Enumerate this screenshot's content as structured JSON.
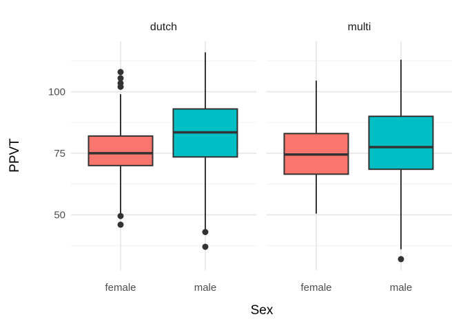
{
  "chart_data": {
    "type": "boxplot",
    "title": "",
    "xlabel": "Sex",
    "ylabel": "PPVT",
    "x_categories": [
      "female",
      "male"
    ],
    "y_ticks": [
      50,
      75,
      100
    ],
    "y_minor_ticks": [
      37.5,
      62.5,
      87.5,
      112.5
    ],
    "ylim": [
      27.5,
      120.5
    ],
    "grid": true,
    "legend": "none",
    "facets": [
      {
        "label": "dutch",
        "boxes": [
          {
            "category": "female",
            "fill": "#F8766D",
            "whisker_low": 50.5,
            "q1": 70,
            "median": 75,
            "q3": 82,
            "whisker_high": 99,
            "outliers": [
              108,
              105.5,
              103.5,
              102,
              49.5,
              46
            ]
          },
          {
            "category": "male",
            "fill": "#00BFC4",
            "whisker_low": 44,
            "q1": 73.5,
            "median": 83.5,
            "q3": 93,
            "whisker_high": 116,
            "outliers": [
              43,
              37
            ]
          }
        ]
      },
      {
        "label": "multi",
        "boxes": [
          {
            "category": "female",
            "fill": "#F8766D",
            "whisker_low": 50.5,
            "q1": 66.5,
            "median": 74.5,
            "q3": 83,
            "whisker_high": 104.5,
            "outliers": []
          },
          {
            "category": "male",
            "fill": "#00BFC4",
            "whisker_low": 36,
            "q1": 68.5,
            "median": 77.5,
            "q3": 90,
            "whisker_high": 113,
            "outliers": [
              32
            ]
          }
        ]
      }
    ],
    "colors": {
      "female_fill": "#F8766D",
      "male_fill": "#00BFC4",
      "box_stroke": "#333333",
      "median_stroke": "#333333",
      "whisker_stroke": "#333333",
      "outlier_fill": "#333333",
      "grid_major": "#E5E5E5",
      "grid_minor": "#F0F0F0",
      "axis_text": "#4D4D4D",
      "title_text": "#000000",
      "background": "#FFFFFF"
    }
  }
}
